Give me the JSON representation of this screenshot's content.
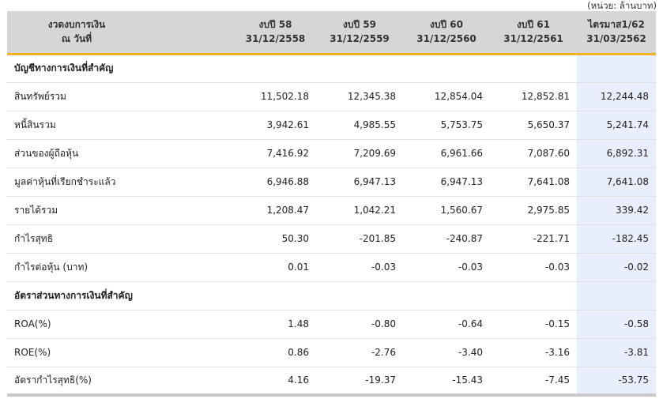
{
  "unit_note": "(หน่วย: ล้านบาท)",
  "header": {
    "first_line1": "งวดงบการเงิน",
    "first_line2": "ณ วันที่",
    "periods": [
      {
        "title": "งบปี 58",
        "date": "31/12/2558"
      },
      {
        "title": "งบปี 59",
        "date": "31/12/2559"
      },
      {
        "title": "งบปี 60",
        "date": "31/12/2560"
      },
      {
        "title": "งบปี 61",
        "date": "31/12/2561"
      },
      {
        "title": "ไตรมาส1/62",
        "date": "31/03/2562"
      }
    ]
  },
  "sections": {
    "key_accounts": "บัญชีทางการเงินที่สำคัญ",
    "key_ratios": "อัตราส่วนทางการเงินที่สำคัญ"
  },
  "rows": [
    {
      "label": "สินทรัพย์รวม",
      "values": [
        "11,502.18",
        "12,345.38",
        "12,854.04",
        "12,852.81",
        "12,244.48"
      ]
    },
    {
      "label": "หนี้สินรวม",
      "values": [
        "3,942.61",
        "4,985.55",
        "5,753.75",
        "5,650.37",
        "5,241.74"
      ]
    },
    {
      "label": "ส่วนของผู้ถือหุ้น",
      "values": [
        "7,416.92",
        "7,209.69",
        "6,961.66",
        "7,087.60",
        "6,892.31"
      ]
    },
    {
      "label": "มูลค่าหุ้นที่เรียกชำระแล้ว",
      "values": [
        "6,946.88",
        "6,947.13",
        "6,947.13",
        "7,641.08",
        "7,641.08"
      ]
    },
    {
      "label": "รายได้รวม",
      "values": [
        "1,208.47",
        "1,042.21",
        "1,560.67",
        "2,975.85",
        "339.42"
      ]
    },
    {
      "label": "กำไรสุทธิ",
      "values": [
        "50.30",
        "-201.85",
        "-240.87",
        "-221.71",
        "-182.45"
      ]
    },
    {
      "label": "กำไรต่อหุ้น (บาท)",
      "values": [
        "0.01",
        "-0.03",
        "-0.03",
        "-0.03",
        "-0.02"
      ]
    },
    {
      "label": "ROA(%)",
      "values": [
        "1.48",
        "-0.80",
        "-0.64",
        "-0.15",
        "-0.58"
      ]
    },
    {
      "label": "ROE(%)",
      "values": [
        "0.86",
        "-2.76",
        "-3.40",
        "-3.16",
        "-3.81"
      ]
    },
    {
      "label": "อัตรากำไรสุทธิ(%)",
      "values": [
        "4.16",
        "-19.37",
        "-15.43",
        "-7.45",
        "-53.75"
      ]
    }
  ],
  "colors": {
    "header_bg": "#d6d6d6",
    "header_underline": "#f0b323",
    "latest_column_bg": "#e8eefc"
  }
}
